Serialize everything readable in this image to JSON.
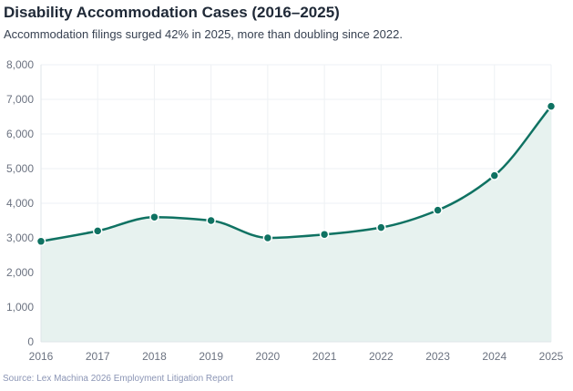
{
  "title": "Disability Accommodation Cases (2016–2025)",
  "subtitle": "Accommodation filings surged 42% in 2025, more than doubling since 2022.",
  "source": "Source: Lex Machina 2026 Employment Litigation Report",
  "chart_data": {
    "type": "area",
    "categories": [
      "2016",
      "2017",
      "2018",
      "2019",
      "2020",
      "2021",
      "2022",
      "2023",
      "2024",
      "2025"
    ],
    "values": [
      2900,
      3200,
      3600,
      3500,
      3000,
      3100,
      3300,
      3800,
      4800,
      6800
    ],
    "ylim": [
      0,
      8000
    ],
    "yticks": [
      0,
      1000,
      2000,
      3000,
      4000,
      5000,
      6000,
      7000,
      8000
    ],
    "ytick_labels": [
      "0",
      "1,000",
      "2,000",
      "3,000",
      "4,000",
      "5,000",
      "6,000",
      "7,000",
      "8,000"
    ],
    "grid": true,
    "line_color": "#0f7262",
    "fill_color": "#e7f2ef"
  }
}
